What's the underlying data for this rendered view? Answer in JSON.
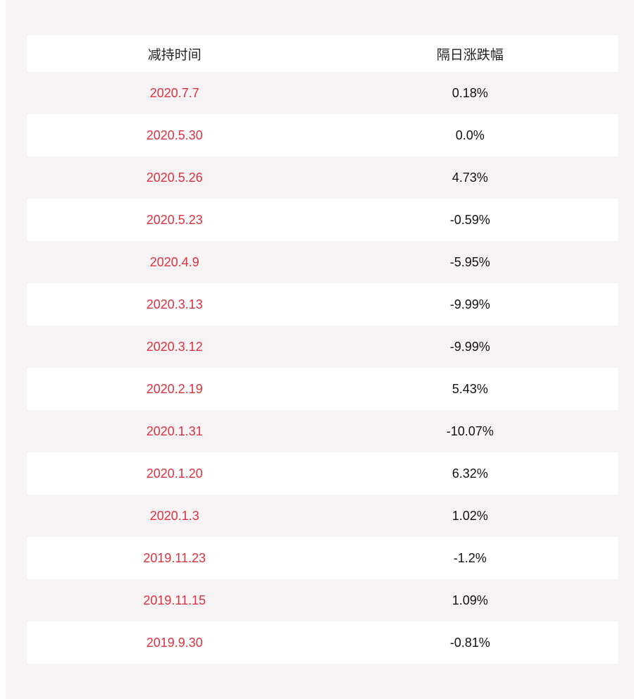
{
  "table": {
    "headers": [
      "减持时间",
      "隔日涨跌幅"
    ],
    "rows": [
      {
        "date": "2020.7.7",
        "change": "0.18%"
      },
      {
        "date": "2020.5.30",
        "change": "0.0%"
      },
      {
        "date": "2020.5.26",
        "change": "4.73%"
      },
      {
        "date": "2020.5.23",
        "change": "-0.59%"
      },
      {
        "date": "2020.4.9",
        "change": "-5.95%"
      },
      {
        "date": "2020.3.13",
        "change": "-9.99%"
      },
      {
        "date": "2020.3.12",
        "change": "-9.99%"
      },
      {
        "date": "2020.2.19",
        "change": "5.43%"
      },
      {
        "date": "2020.1.31",
        "change": "-10.07%"
      },
      {
        "date": "2020.1.20",
        "change": "6.32%"
      },
      {
        "date": "2020.1.3",
        "change": "1.02%"
      },
      {
        "date": "2019.11.23",
        "change": "-1.2%"
      },
      {
        "date": "2019.11.15",
        "change": "1.09%"
      },
      {
        "date": "2019.9.30",
        "change": "-0.81%"
      }
    ]
  },
  "colors": {
    "date_text": "#d9333f",
    "value_text": "#111111",
    "panel_bg": "#f8f4f5",
    "row_white": "#ffffff"
  }
}
